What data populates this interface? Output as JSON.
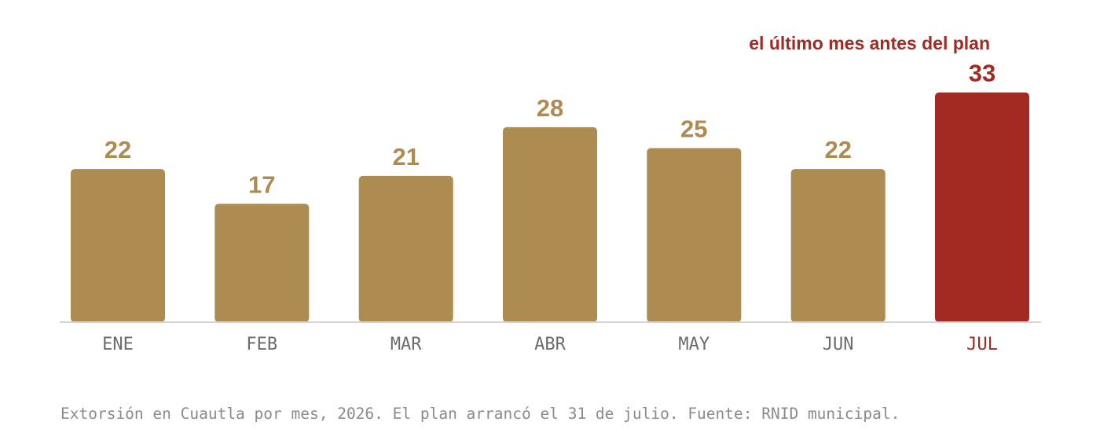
{
  "chart_data": {
    "type": "bar",
    "categories": [
      "ENE",
      "FEB",
      "MAR",
      "ABR",
      "MAY",
      "JUN",
      "JUL"
    ],
    "values": [
      22,
      17,
      21,
      28,
      25,
      22,
      33
    ],
    "highlight_index": 6,
    "annotation": "el último mes antes del plan",
    "caption": "Extorsión en Cuautla por mes, 2026. El plan arrancó el 31 de julio. Fuente: RNID municipal.",
    "ylim": [
      0,
      33
    ],
    "grid": false,
    "colors": {
      "bar": "#ae8b50",
      "highlight": "#a22a23",
      "axis": "#d4d4d4",
      "category_text": "#6b6b6b",
      "caption_text": "#8a8a8a"
    }
  }
}
